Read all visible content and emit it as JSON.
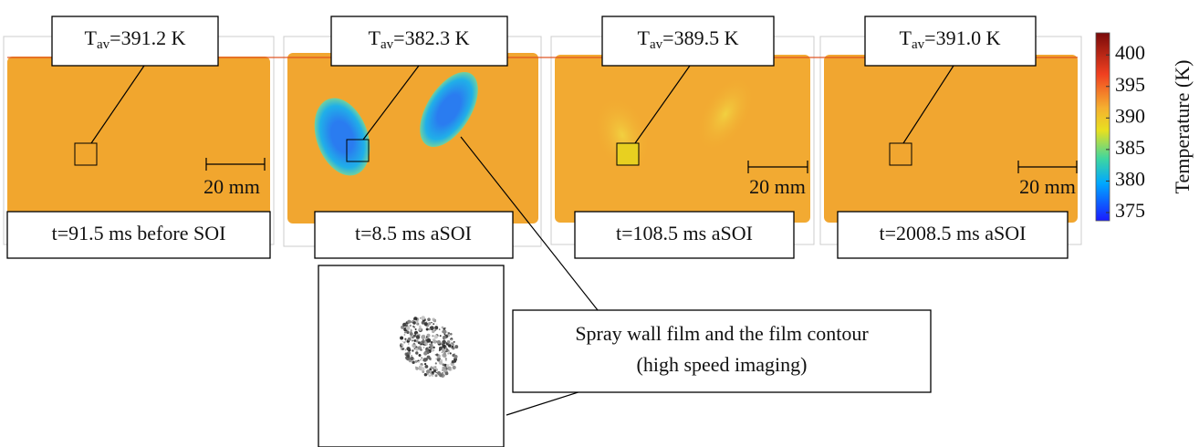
{
  "panels": [
    {
      "tav": {
        "base": "T",
        "sub": "av",
        "rest": "=391.2 K"
      },
      "time": "t=91.5 ms before SOI",
      "scale": "20 mm"
    },
    {
      "tav": {
        "base": "T",
        "sub": "av",
        "rest": "=382.3 K"
      },
      "time": "t=8.5 ms aSOI"
    },
    {
      "tav": {
        "base": "T",
        "sub": "av",
        "rest": "=389.5 K"
      },
      "time": "t=108.5 ms aSOI",
      "scale": "20 mm"
    },
    {
      "tav": {
        "base": "T",
        "sub": "av",
        "rest": "=391.0 K"
      },
      "time": "t=2008.5 ms aSOI",
      "scale": "20 mm"
    }
  ],
  "colorbar": {
    "label": "Temperature (K)",
    "lim": [
      373.7,
      403.5
    ],
    "ticks": [
      375,
      380,
      385,
      390,
      395,
      400
    ]
  },
  "callout": {
    "lines": [
      "Spray wall film and the film contour",
      "(high speed imaging)"
    ]
  }
}
